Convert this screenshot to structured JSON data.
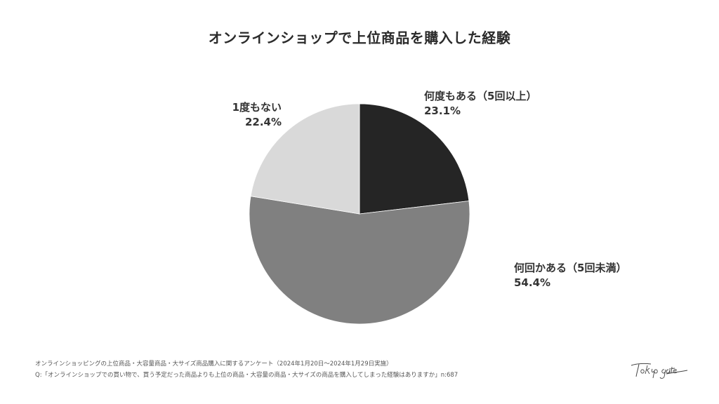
{
  "title": "オンラインショップで上位商品を購入した経験",
  "chart_data": {
    "type": "pie",
    "title": "オンラインショップで上位商品を購入した経験",
    "categories": [
      "何度もある（5回以上）",
      "何回かある（5回未満）",
      "1度もない"
    ],
    "values": [
      23.1,
      54.4,
      22.4
    ],
    "unit": "%",
    "colors": [
      "#252525",
      "#808080",
      "#d9d9d9"
    ],
    "start_angle": "12 o'clock, clockwise",
    "legend": "none (direct labels)"
  },
  "labels": [
    {
      "name": "何度もある（5回以上）",
      "pct": "23.1%"
    },
    {
      "name": "何回かある（5回未満）",
      "pct": "54.4%"
    },
    {
      "name": "1度もない",
      "pct": "22.4%"
    }
  ],
  "footer": {
    "survey": "オンラインショッピングの上位商品・大容量商品・大サイズ商品購入に関するアンケート（2024年1月20日〜2024年1月29日実施）",
    "question": "Q:「オンラインショップでの買い物で、買う予定だった商品よりも上位の商品・大容量の商品・大サイズの商品を購入してしまった経験はありますか」n:687"
  },
  "logo": {
    "text": "Tokyo gate"
  }
}
